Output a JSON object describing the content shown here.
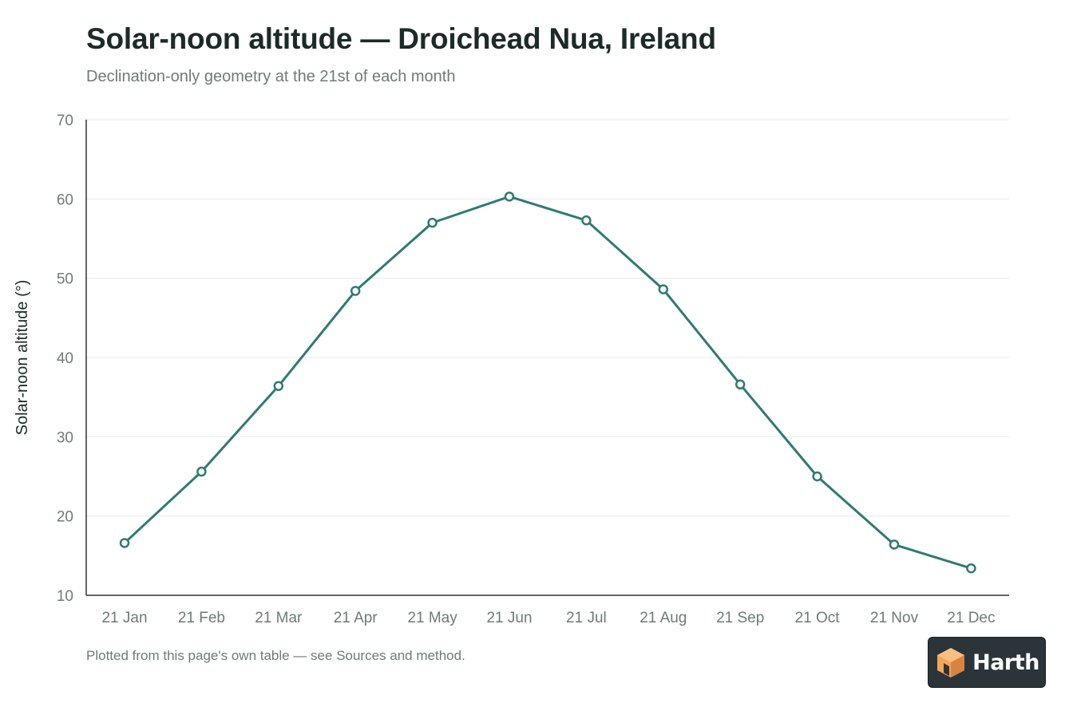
{
  "header": {
    "title": "Solar-noon altitude — Droichead Nua, Ireland",
    "subtitle": "Declination-only geometry at the 21st of each month"
  },
  "footer": {
    "note": "Plotted from this page's own table — see Sources and method."
  },
  "brand": {
    "name": "Harth",
    "badge_color": "#2b3438",
    "logo_color": "#f2a65a"
  },
  "colors": {
    "series": "#2e7b72",
    "grid": "#e7eaea",
    "axis": "#333333",
    "tick_text": "#6f7a77"
  },
  "chart_data": {
    "type": "line",
    "ylabel": "Solar-noon altitude (°)",
    "xlabel": "",
    "categories": [
      "21 Jan",
      "21 Feb",
      "21 Mar",
      "21 Apr",
      "21 May",
      "21 Jun",
      "21 Jul",
      "21 Aug",
      "21 Sep",
      "21 Oct",
      "21 Nov",
      "21 Dec"
    ],
    "series": [
      {
        "values": [
          16.6,
          25.6,
          36.4,
          48.4,
          57.0,
          60.3,
          57.3,
          48.6,
          36.6,
          25.0,
          16.4,
          13.4
        ]
      }
    ],
    "ylim": [
      10,
      70
    ],
    "yticks": [
      10,
      20,
      30,
      40,
      50,
      60,
      70
    ],
    "grid": true,
    "markers": "hollow-circle"
  }
}
